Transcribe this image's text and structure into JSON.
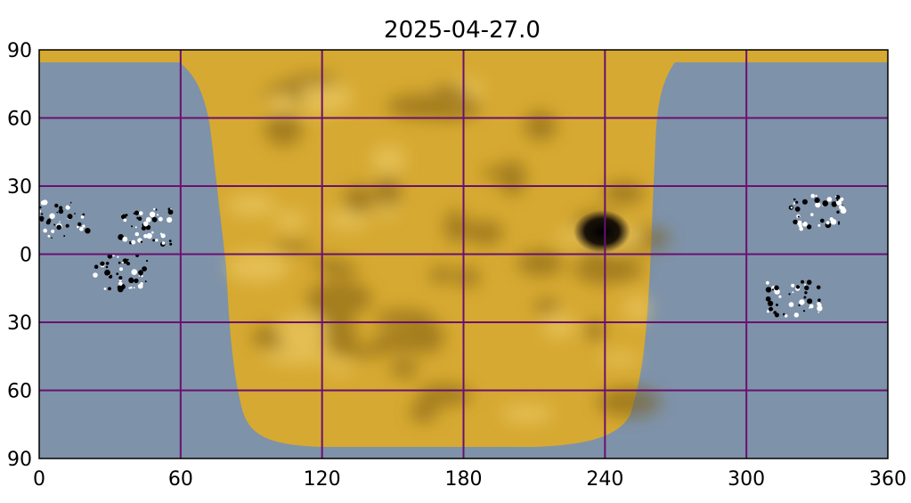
{
  "title": "2025-04-27.0",
  "colors": {
    "background": "#7e92a9",
    "farside": "#d6a932",
    "farside_dark": "#7a5a10",
    "grid": "#6a1070",
    "frame": "#000000"
  },
  "chart_data": {
    "type": "heatmap",
    "title": "2025-04-27.0",
    "xlabel": "",
    "ylabel": "",
    "xlim": [
      0,
      360
    ],
    "ylim": [
      -90,
      90
    ],
    "grid": true,
    "x_ticks": [
      0,
      60,
      120,
      180,
      240,
      300,
      360
    ],
    "y_ticks": [
      90,
      60,
      30,
      0,
      -30,
      -60,
      -90
    ],
    "x_tick_labels": [
      "0",
      "60",
      "120",
      "180",
      "240",
      "300",
      "360"
    ],
    "y_tick_labels": [
      "90",
      "60",
      "30",
      "0",
      "30",
      "60",
      "90"
    ],
    "far_side_region": {
      "description_label": "",
      "lon_range_equator": [
        78,
        258
      ]
    },
    "features": [
      {
        "kind": "dark-spot",
        "lon": 240,
        "lat": 10
      },
      {
        "kind": "active-region",
        "lon": 10,
        "lat": 15
      },
      {
        "kind": "active-region",
        "lon": 45,
        "lat": 12
      },
      {
        "kind": "active-region",
        "lon": 35,
        "lat": -8
      },
      {
        "kind": "active-region",
        "lon": 330,
        "lat": 18
      },
      {
        "kind": "active-region",
        "lon": 320,
        "lat": -20
      }
    ]
  }
}
